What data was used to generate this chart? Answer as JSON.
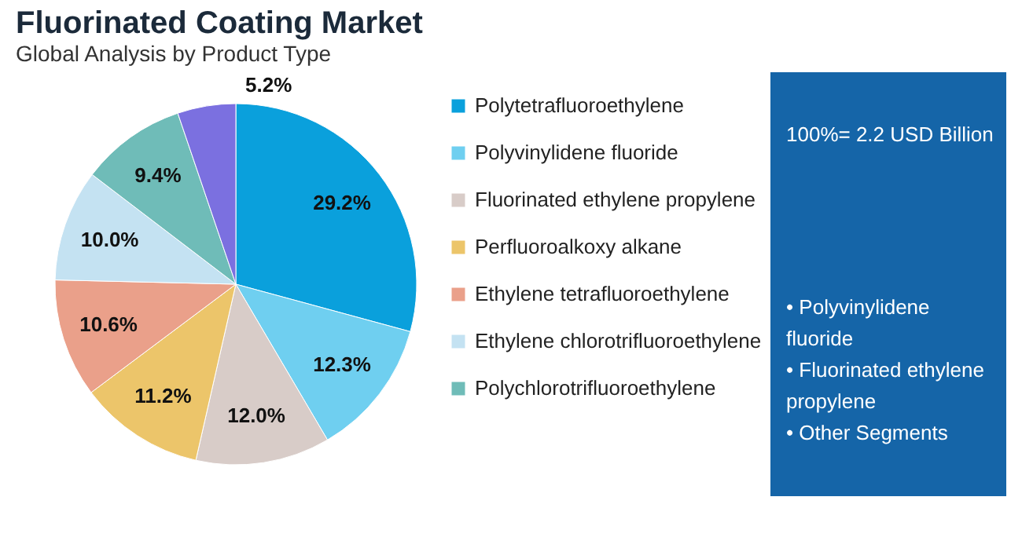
{
  "chart_data": {
    "type": "pie",
    "title": "Fluorinated Coating Market",
    "subtitle": "Global Analysis by Product Type",
    "categories": [
      "Polytetrafluoroethylene",
      "Polyvinylidene fluoride",
      "Fluorinated ethylene propylene",
      "Perfluoroalkoxy alkane",
      "Ethylene tetrafluoroethylene",
      "Ethylene chlorotrifluoroethylene",
      "Polychlorotrifluoroethylene",
      null
    ],
    "values": [
      29.2,
      12.3,
      12.0,
      11.2,
      10.6,
      10.0,
      9.4,
      5.2
    ],
    "colors": [
      "#0aa0dc",
      "#6fcff0",
      "#d8ccc8",
      "#ecc56a",
      "#eaa08a",
      "#c4e2f2",
      "#6fbcb8",
      "#7b70e0"
    ],
    "value_labels": [
      "29.2%",
      "12.3%",
      "12.0%",
      "11.2%",
      "10.6%",
      "10.0%",
      "9.4%",
      "5.2%"
    ],
    "legend": "right",
    "annotations": [
      "100%= 2.2 USD Billion",
      "• Polyvinylidene fluoride",
      "• Fluorinated ethylene propylene",
      "• Other Segments"
    ]
  }
}
